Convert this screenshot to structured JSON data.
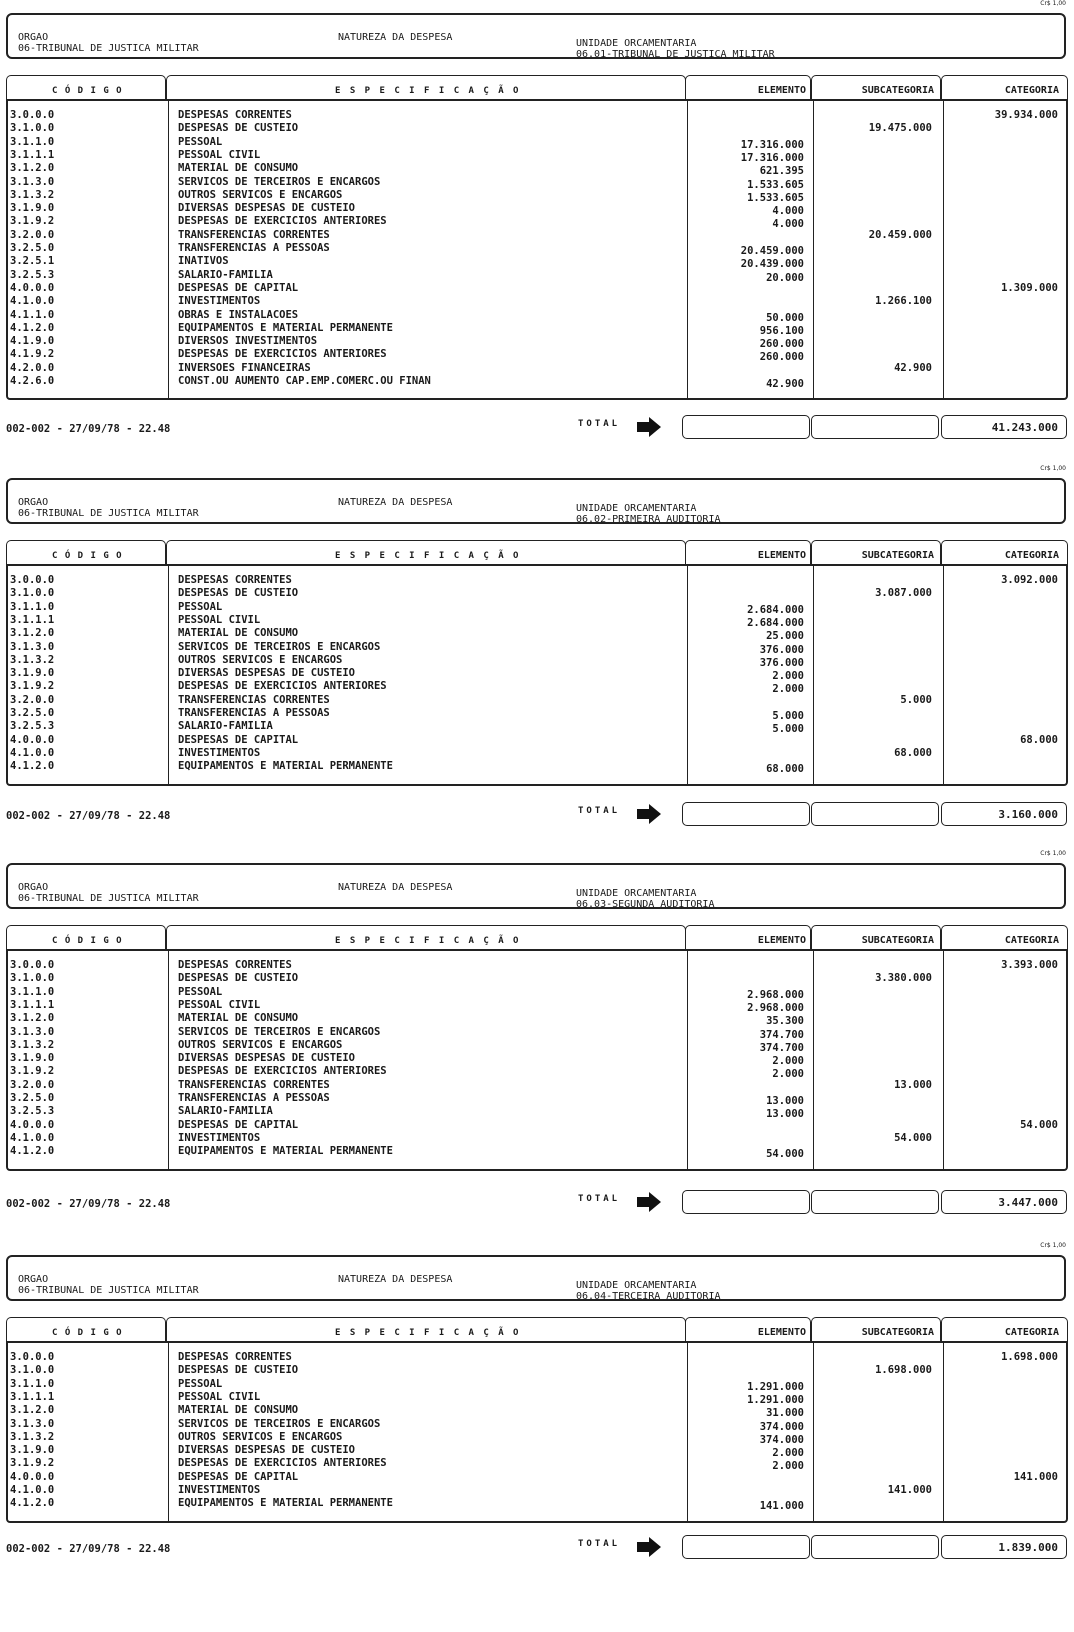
{
  "currency_unit": "Cr$ 1,00",
  "labels": {
    "orgao": "ORGAO",
    "natureza": "NATUREZA DA DESPESA",
    "unidade": "UNIDADE ORCAMENTARIA",
    "col_codigo": "C Ó D I G O",
    "col_especificacao": "E S P E C I F I C A Ç Ã O",
    "col_elemento": "ELEMENTO",
    "col_subcategoria": "SUBCATEGORIA",
    "col_categoria": "CATEGORIA",
    "total": "TOTAL",
    "total_icon": "arrow-right-icon"
  },
  "pages": [
    {
      "orgao": "06-TRIBUNAL DE JUSTICA MILITAR",
      "unidade": "06.01-TRIBUNAL DE JUSTICA MILITAR",
      "footer": "002-002 - 27/09/78 - 22.48",
      "total": "41.243.000",
      "rows": [
        {
          "codigo": "3.0.0.0",
          "especificacao": "DESPESAS CORRENTES",
          "elemento": "",
          "subcategoria": "",
          "categoria": "39.934.000"
        },
        {
          "codigo": "3.1.0.0",
          "especificacao": "DESPESAS DE CUSTEIO",
          "elemento": "",
          "subcategoria": "19.475.000",
          "categoria": ""
        },
        {
          "codigo": "3.1.1.0",
          "especificacao": "PESSOAL",
          "elemento": "17.316.000",
          "subcategoria": "",
          "categoria": ""
        },
        {
          "codigo": "3.1.1.1",
          "especificacao": "PESSOAL CIVIL",
          "elemento": "17.316.000",
          "subcategoria": "",
          "categoria": ""
        },
        {
          "codigo": "3.1.2.0",
          "especificacao": "MATERIAL DE CONSUMO",
          "elemento": "621.395",
          "subcategoria": "",
          "categoria": ""
        },
        {
          "codigo": "3.1.3.0",
          "especificacao": "SERVICOS DE TERCEIROS E ENCARGOS",
          "elemento": "1.533.605",
          "subcategoria": "",
          "categoria": ""
        },
        {
          "codigo": "3.1.3.2",
          "especificacao": "OUTROS SERVICOS E ENCARGOS",
          "elemento": "1.533.605",
          "subcategoria": "",
          "categoria": ""
        },
        {
          "codigo": "3.1.9.0",
          "especificacao": "DIVERSAS DESPESAS DE CUSTEIO",
          "elemento": "4.000",
          "subcategoria": "",
          "categoria": ""
        },
        {
          "codigo": "3.1.9.2",
          "especificacao": "DESPESAS DE EXERCICIOS ANTERIORES",
          "elemento": "4.000",
          "subcategoria": "",
          "categoria": ""
        },
        {
          "codigo": "3.2.0.0",
          "especificacao": "TRANSFERENCIAS CORRENTES",
          "elemento": "",
          "subcategoria": "20.459.000",
          "categoria": ""
        },
        {
          "codigo": "3.2.5.0",
          "especificacao": "TRANSFERENCIAS A PESSOAS",
          "elemento": "20.459.000",
          "subcategoria": "",
          "categoria": ""
        },
        {
          "codigo": "3.2.5.1",
          "especificacao": "INATIVOS",
          "elemento": "20.439.000",
          "subcategoria": "",
          "categoria": ""
        },
        {
          "codigo": "3.2.5.3",
          "especificacao": "SALARIO-FAMILIA",
          "elemento": "20.000",
          "subcategoria": "",
          "categoria": ""
        },
        {
          "codigo": "4.0.0.0",
          "especificacao": "DESPESAS DE CAPITAL",
          "elemento": "",
          "subcategoria": "",
          "categoria": "1.309.000"
        },
        {
          "codigo": "4.1.0.0",
          "especificacao": "INVESTIMENTOS",
          "elemento": "",
          "subcategoria": "1.266.100",
          "categoria": ""
        },
        {
          "codigo": "4.1.1.0",
          "especificacao": "OBRAS E INSTALACOES",
          "elemento": "50.000",
          "subcategoria": "",
          "categoria": ""
        },
        {
          "codigo": "4.1.2.0",
          "especificacao": "EQUIPAMENTOS E MATERIAL PERMANENTE",
          "elemento": "956.100",
          "subcategoria": "",
          "categoria": ""
        },
        {
          "codigo": "4.1.9.0",
          "especificacao": "DIVERSOS INVESTIMENTOS",
          "elemento": "260.000",
          "subcategoria": "",
          "categoria": ""
        },
        {
          "codigo": "4.1.9.2",
          "especificacao": "DESPESAS DE EXERCICIOS ANTERIORES",
          "elemento": "260.000",
          "subcategoria": "",
          "categoria": ""
        },
        {
          "codigo": "4.2.0.0",
          "especificacao": "INVERSOES FINANCEIRAS",
          "elemento": "",
          "subcategoria": "42.900",
          "categoria": ""
        },
        {
          "codigo": "4.2.6.0",
          "especificacao": "CONST.OU AUMENTO CAP.EMP.COMERC.OU FINAN",
          "elemento": "42.900",
          "subcategoria": "",
          "categoria": ""
        }
      ]
    },
    {
      "orgao": "06-TRIBUNAL DE JUSTICA MILITAR",
      "unidade": "06.02-PRIMEIRA AUDITORIA",
      "footer": "002-002 - 27/09/78 - 22.48",
      "total": "3.160.000",
      "rows": [
        {
          "codigo": "3.0.0.0",
          "especificacao": "DESPESAS CORRENTES",
          "elemento": "",
          "subcategoria": "",
          "categoria": "3.092.000"
        },
        {
          "codigo": "3.1.0.0",
          "especificacao": "DESPESAS DE CUSTEIO",
          "elemento": "",
          "subcategoria": "3.087.000",
          "categoria": ""
        },
        {
          "codigo": "3.1.1.0",
          "especificacao": "PESSOAL",
          "elemento": "2.684.000",
          "subcategoria": "",
          "categoria": ""
        },
        {
          "codigo": "3.1.1.1",
          "especificacao": "PESSOAL CIVIL",
          "elemento": "2.684.000",
          "subcategoria": "",
          "categoria": ""
        },
        {
          "codigo": "3.1.2.0",
          "especificacao": "MATERIAL DE CONSUMO",
          "elemento": "25.000",
          "subcategoria": "",
          "categoria": ""
        },
        {
          "codigo": "3.1.3.0",
          "especificacao": "SERVICOS DE TERCEIROS E ENCARGOS",
          "elemento": "376.000",
          "subcategoria": "",
          "categoria": ""
        },
        {
          "codigo": "3.1.3.2",
          "especificacao": "OUTROS SERVICOS E ENCARGOS",
          "elemento": "376.000",
          "subcategoria": "",
          "categoria": ""
        },
        {
          "codigo": "3.1.9.0",
          "especificacao": "DIVERSAS DESPESAS DE CUSTEIO",
          "elemento": "2.000",
          "subcategoria": "",
          "categoria": ""
        },
        {
          "codigo": "3.1.9.2",
          "especificacao": "DESPESAS DE EXERCICIOS ANTERIORES",
          "elemento": "2.000",
          "subcategoria": "",
          "categoria": ""
        },
        {
          "codigo": "3.2.0.0",
          "especificacao": "TRANSFERENCIAS CORRENTES",
          "elemento": "",
          "subcategoria": "5.000",
          "categoria": ""
        },
        {
          "codigo": "3.2.5.0",
          "especificacao": "TRANSFERENCIAS A PESSOAS",
          "elemento": "5.000",
          "subcategoria": "",
          "categoria": ""
        },
        {
          "codigo": "3.2.5.3",
          "especificacao": "SALARIO-FAMILIA",
          "elemento": "5.000",
          "subcategoria": "",
          "categoria": ""
        },
        {
          "codigo": "4.0.0.0",
          "especificacao": "DESPESAS DE CAPITAL",
          "elemento": "",
          "subcategoria": "",
          "categoria": "68.000"
        },
        {
          "codigo": "4.1.0.0",
          "especificacao": "INVESTIMENTOS",
          "elemento": "",
          "subcategoria": "68.000",
          "categoria": ""
        },
        {
          "codigo": "4.1.2.0",
          "especificacao": "EQUIPAMENTOS E MATERIAL PERMANENTE",
          "elemento": "68.000",
          "subcategoria": "",
          "categoria": ""
        }
      ]
    },
    {
      "orgao": "06-TRIBUNAL DE JUSTICA MILITAR",
      "unidade": "06.03-SEGUNDA AUDITORIA",
      "footer": "002-002 - 27/09/78 - 22.48",
      "total": "3.447.000",
      "rows": [
        {
          "codigo": "3.0.0.0",
          "especificacao": "DESPESAS CORRENTES",
          "elemento": "",
          "subcategoria": "",
          "categoria": "3.393.000"
        },
        {
          "codigo": "3.1.0.0",
          "especificacao": "DESPESAS DE CUSTEIO",
          "elemento": "",
          "subcategoria": "3.380.000",
          "categoria": ""
        },
        {
          "codigo": "3.1.1.0",
          "especificacao": "PESSOAL",
          "elemento": "2.968.000",
          "subcategoria": "",
          "categoria": ""
        },
        {
          "codigo": "3.1.1.1",
          "especificacao": "PESSOAL CIVIL",
          "elemento": "2.968.000",
          "subcategoria": "",
          "categoria": ""
        },
        {
          "codigo": "3.1.2.0",
          "especificacao": "MATERIAL DE CONSUMO",
          "elemento": "35.300",
          "subcategoria": "",
          "categoria": ""
        },
        {
          "codigo": "3.1.3.0",
          "especificacao": "SERVICOS DE TERCEIROS E ENCARGOS",
          "elemento": "374.700",
          "subcategoria": "",
          "categoria": ""
        },
        {
          "codigo": "3.1.3.2",
          "especificacao": "OUTROS SERVICOS E ENCARGOS",
          "elemento": "374.700",
          "subcategoria": "",
          "categoria": ""
        },
        {
          "codigo": "3.1.9.0",
          "especificacao": "DIVERSAS DESPESAS DE CUSTEIO",
          "elemento": "2.000",
          "subcategoria": "",
          "categoria": ""
        },
        {
          "codigo": "3.1.9.2",
          "especificacao": "DESPESAS DE EXERCICIOS ANTERIORES",
          "elemento": "2.000",
          "subcategoria": "",
          "categoria": ""
        },
        {
          "codigo": "3.2.0.0",
          "especificacao": "TRANSFERENCIAS CORRENTES",
          "elemento": "",
          "subcategoria": "13.000",
          "categoria": ""
        },
        {
          "codigo": "3.2.5.0",
          "especificacao": "TRANSFERENCIAS A PESSOAS",
          "elemento": "13.000",
          "subcategoria": "",
          "categoria": ""
        },
        {
          "codigo": "3.2.5.3",
          "especificacao": "SALARIO-FAMILIA",
          "elemento": "13.000",
          "subcategoria": "",
          "categoria": ""
        },
        {
          "codigo": "4.0.0.0",
          "especificacao": "DESPESAS DE CAPITAL",
          "elemento": "",
          "subcategoria": "",
          "categoria": "54.000"
        },
        {
          "codigo": "4.1.0.0",
          "especificacao": "INVESTIMENTOS",
          "elemento": "",
          "subcategoria": "54.000",
          "categoria": ""
        },
        {
          "codigo": "4.1.2.0",
          "especificacao": "EQUIPAMENTOS E MATERIAL PERMANENTE",
          "elemento": "54.000",
          "subcategoria": "",
          "categoria": ""
        }
      ]
    },
    {
      "orgao": "06-TRIBUNAL DE JUSTICA MILITAR",
      "unidade": "06.04-TERCEIRA AUDITORIA",
      "footer": "002-002 - 27/09/78 - 22.48",
      "total": "1.839.000",
      "rows": [
        {
          "codigo": "3.0.0.0",
          "especificacao": "DESPESAS CORRENTES",
          "elemento": "",
          "subcategoria": "",
          "categoria": "1.698.000"
        },
        {
          "codigo": "3.1.0.0",
          "especificacao": "DESPESAS DE CUSTEIO",
          "elemento": "",
          "subcategoria": "1.698.000",
          "categoria": ""
        },
        {
          "codigo": "3.1.1.0",
          "especificacao": "PESSOAL",
          "elemento": "1.291.000",
          "subcategoria": "",
          "categoria": ""
        },
        {
          "codigo": "3.1.1.1",
          "especificacao": "PESSOAL CIVIL",
          "elemento": "1.291.000",
          "subcategoria": "",
          "categoria": ""
        },
        {
          "codigo": "3.1.2.0",
          "especificacao": "MATERIAL DE CONSUMO",
          "elemento": "31.000",
          "subcategoria": "",
          "categoria": ""
        },
        {
          "codigo": "3.1.3.0",
          "especificacao": "SERVICOS DE TERCEIROS E ENCARGOS",
          "elemento": "374.000",
          "subcategoria": "",
          "categoria": ""
        },
        {
          "codigo": "3.1.3.2",
          "especificacao": "OUTROS SERVICOS E ENCARGOS",
          "elemento": "374.000",
          "subcategoria": "",
          "categoria": ""
        },
        {
          "codigo": "3.1.9.0",
          "especificacao": "DIVERSAS DESPESAS DE CUSTEIO",
          "elemento": "2.000",
          "subcategoria": "",
          "categoria": ""
        },
        {
          "codigo": "3.1.9.2",
          "especificacao": "DESPESAS DE EXERCICIOS ANTERIORES",
          "elemento": "2.000",
          "subcategoria": "",
          "categoria": ""
        },
        {
          "codigo": "4.0.0.0",
          "especificacao": "DESPESAS DE CAPITAL",
          "elemento": "",
          "subcategoria": "",
          "categoria": "141.000"
        },
        {
          "codigo": "4.1.0.0",
          "especificacao": "INVESTIMENTOS",
          "elemento": "",
          "subcategoria": "141.000",
          "categoria": ""
        },
        {
          "codigo": "4.1.2.0",
          "especificacao": "EQUIPAMENTOS E MATERIAL PERMANENTE",
          "elemento": "141.000",
          "subcategoria": "",
          "categoria": ""
        }
      ]
    }
  ]
}
